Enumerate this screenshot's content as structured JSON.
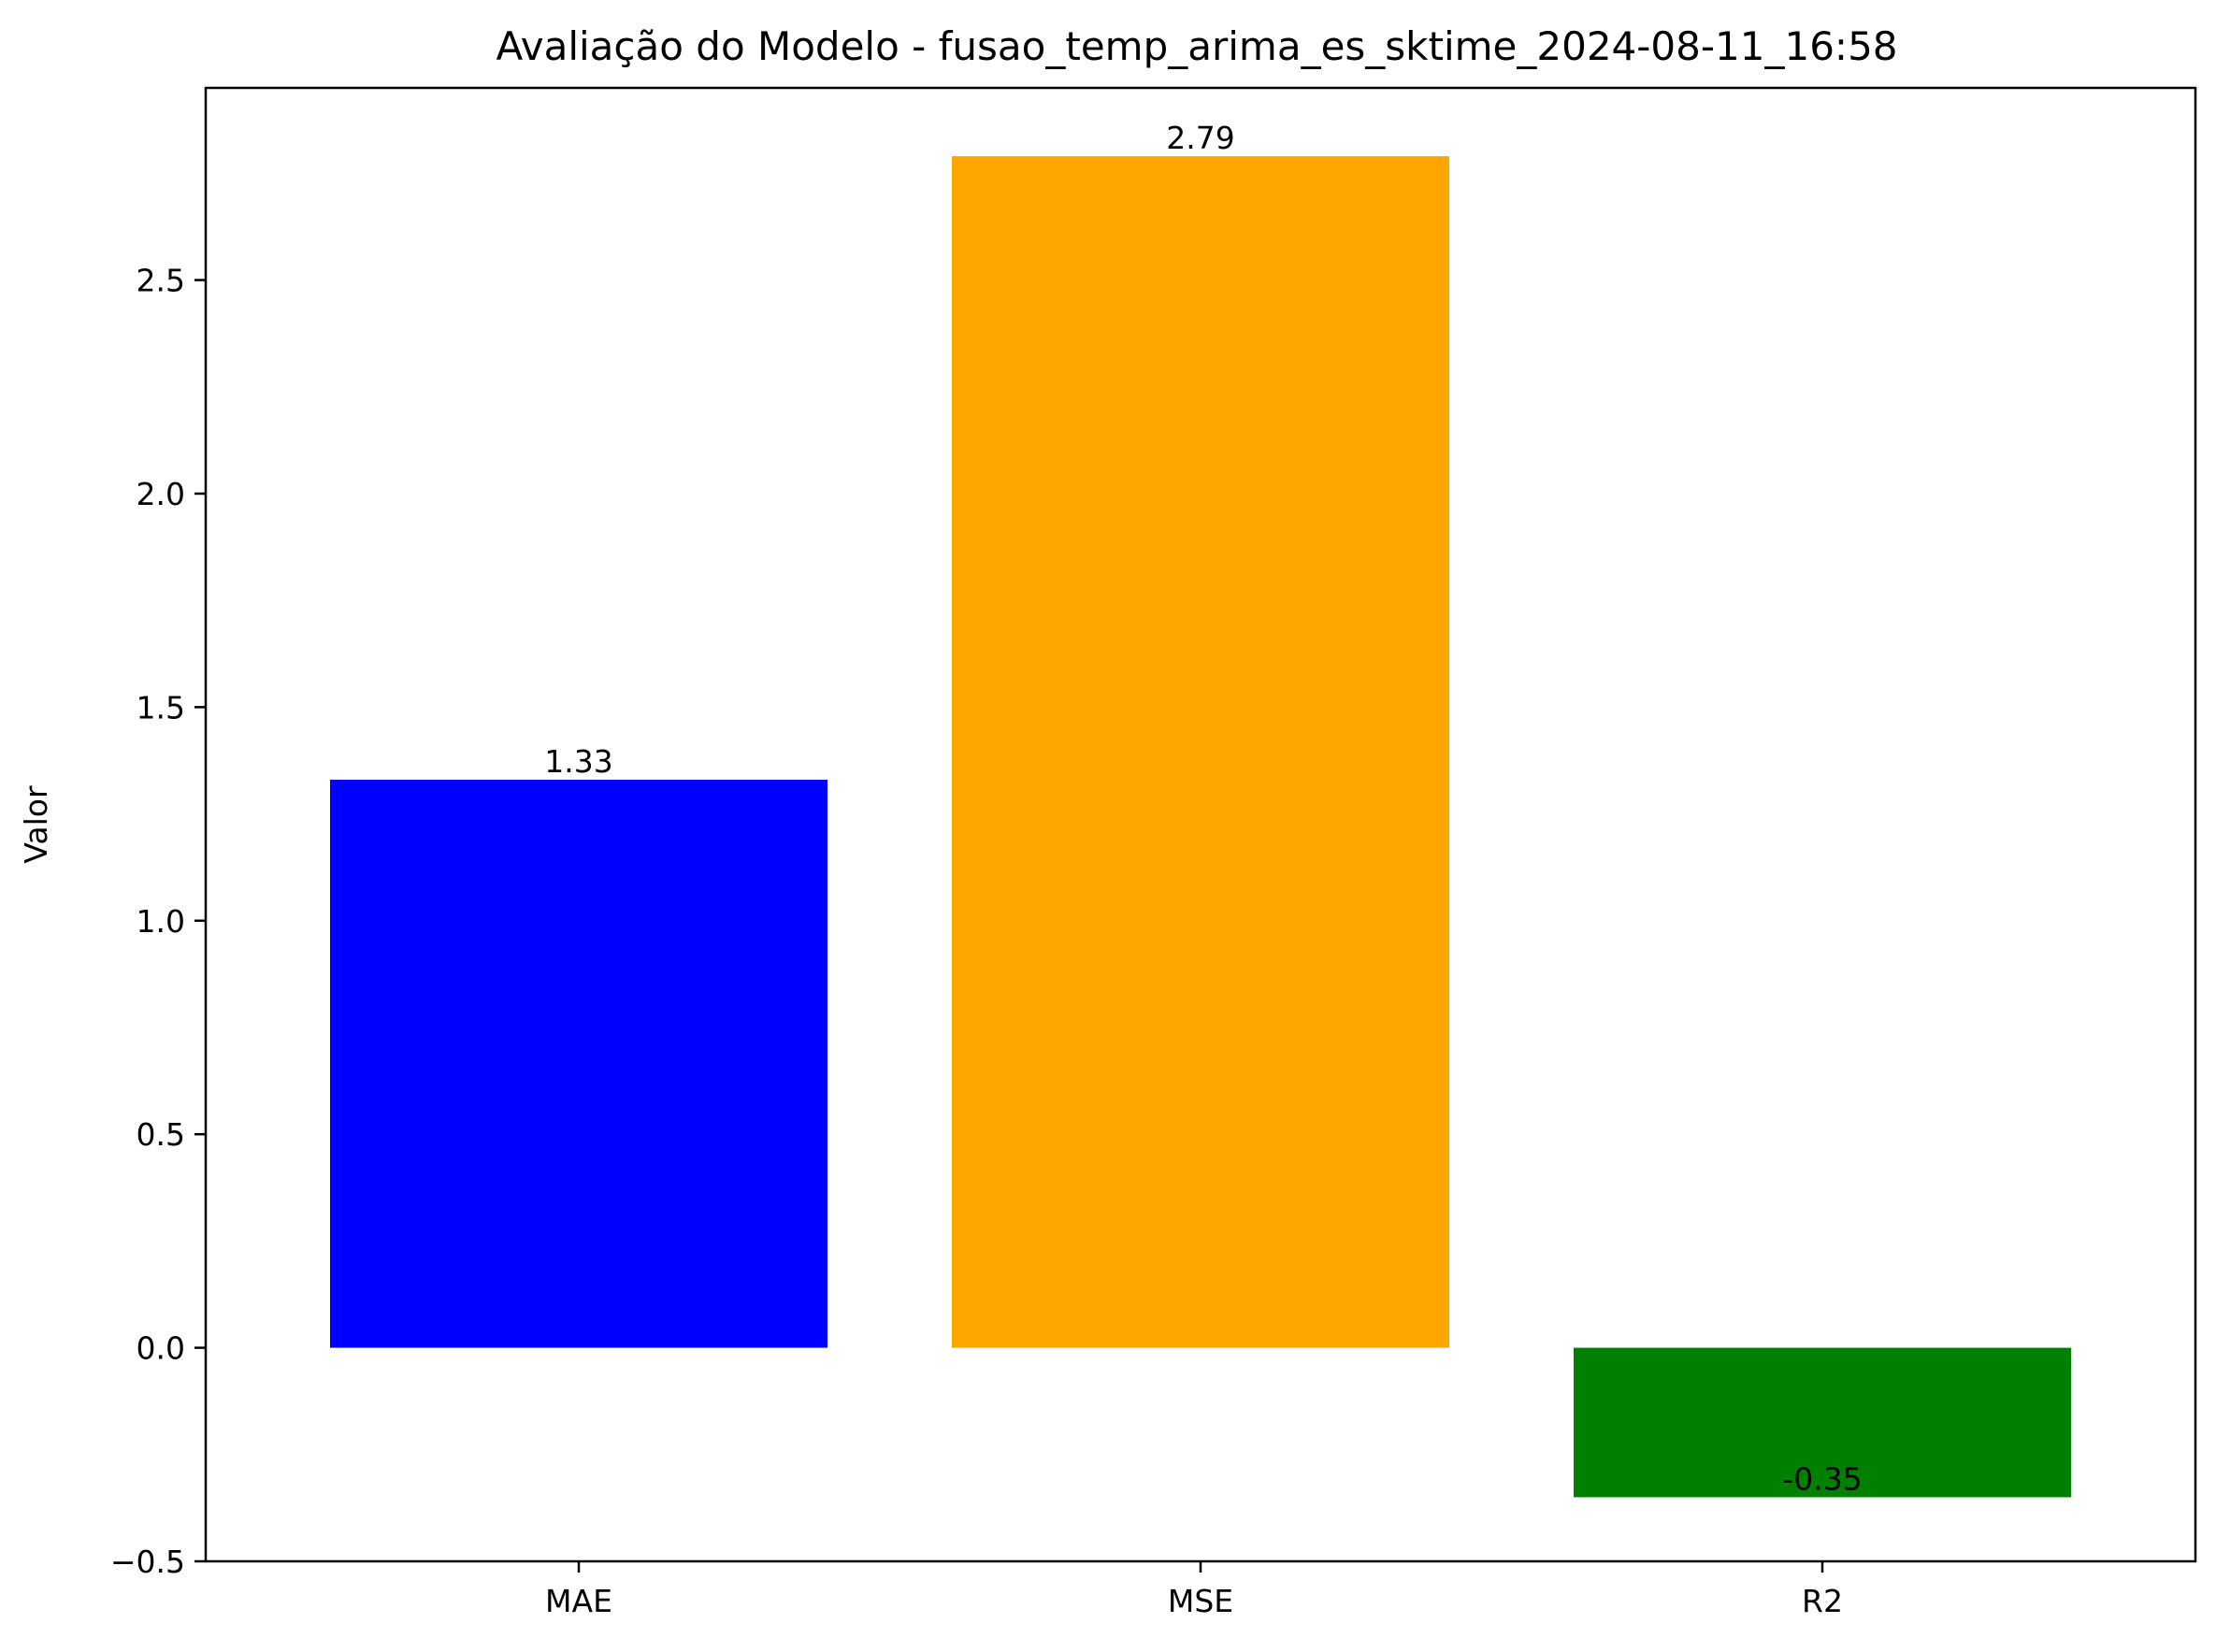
{
  "chart_data": {
    "type": "bar",
    "title": "Avaliação do Modelo - fusao_temp_arima_es_sktime_2024-08-11_16:58",
    "xlabel": "",
    "ylabel": "Valor",
    "categories": [
      "MAE",
      "MSE",
      "R2"
    ],
    "values": [
      1.33,
      2.79,
      -0.35
    ],
    "data_labels": [
      "1.33",
      "2.79",
      "-0.35"
    ],
    "colors": [
      "#0000ff",
      "#ffa500",
      "#008000"
    ],
    "ylim": [
      -0.5,
      2.95
    ],
    "yticks": [
      -0.5,
      0.0,
      0.5,
      1.0,
      1.5,
      2.0,
      2.5
    ],
    "ytick_labels": [
      "−0.5",
      "0.0",
      "0.5",
      "1.0",
      "1.5",
      "2.0",
      "2.5"
    ],
    "grid": false,
    "legend": "none"
  }
}
